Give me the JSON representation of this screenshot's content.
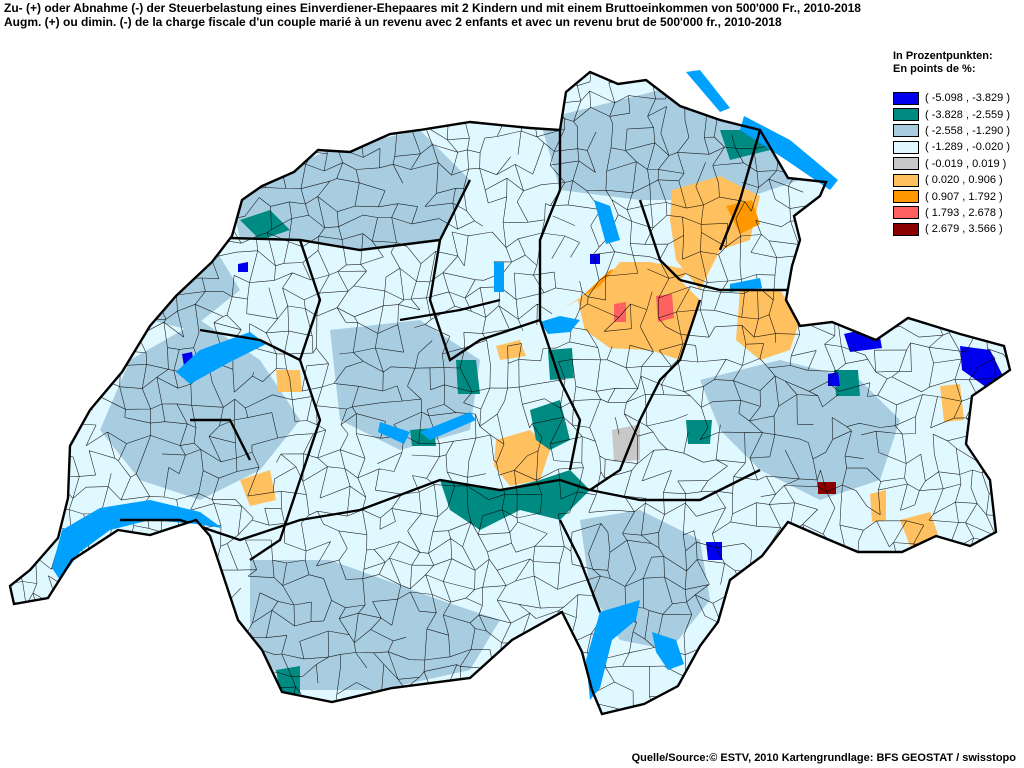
{
  "title_de": "Zu- (+) oder Abnahme (-) der Steuerbelastung eines Einverdiener-Ehepaares mit 2 Kindern und mit einem Bruttoeinkommen von 500'000 Fr., 2010-2018",
  "title_fr": "Augm. (+) ou dimin. (-) de la charge fiscale d'un couple marié à un revenu avec 2 enfants et avec un revenu brut de 500'000 fr., 2010-2018",
  "legend": {
    "heading_de": "In Prozentpunkten:",
    "heading_fr": "En points de %:",
    "classes": [
      {
        "label": "( -5.098 , -3.829 )",
        "color": "#0000ee"
      },
      {
        "label": "( -3.828 , -2.559 )",
        "color": "#008b82"
      },
      {
        "label": "( -2.558 , -1.290 )",
        "color": "#a8cce0"
      },
      {
        "label": "( -1.289 , -0.020 )",
        "color": "#e0f8ff"
      },
      {
        "label": "( -0.019 , 0.019 )",
        "color": "#c8c8c8"
      },
      {
        "label": "( 0.020 , 0.906 )",
        "color": "#ffc060"
      },
      {
        "label": "( 0.907 , 1.792 )",
        "color": "#ff9800"
      },
      {
        "label": "( 1.793 , 2.678 )",
        "color": "#ff6060"
      },
      {
        "label": "( 2.679 , 3.566 )",
        "color": "#8b0000"
      }
    ]
  },
  "lake_color": "#00a0ff",
  "source": "Quelle/Source:© ESTV, 2010 Kartengrundlage: BFS GEOSTAT / swisstopo"
}
